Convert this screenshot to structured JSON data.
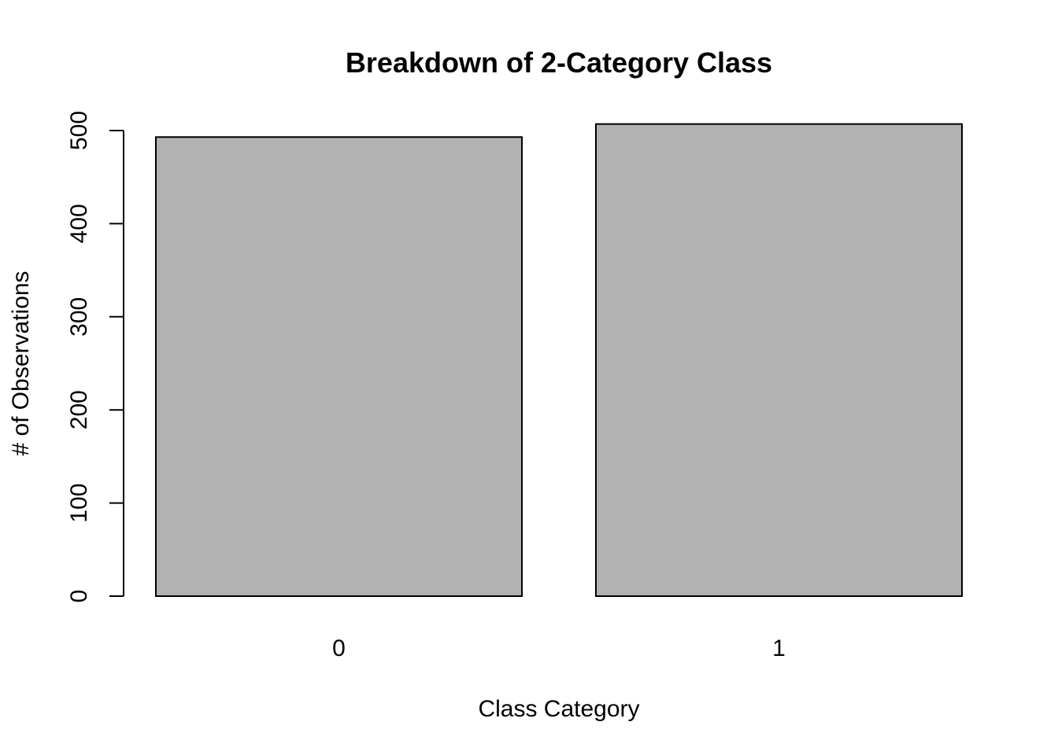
{
  "chart_data": {
    "type": "bar",
    "title": "Breakdown of 2-Category Class",
    "xlabel": "Class Category",
    "ylabel": "# of Observations",
    "categories": [
      "0",
      "1"
    ],
    "values": [
      493,
      507
    ],
    "ylim": [
      0,
      500
    ],
    "yticks": [
      0,
      100,
      200,
      300,
      400,
      500
    ],
    "bar_color": "#b2b2b2",
    "grid": false
  }
}
